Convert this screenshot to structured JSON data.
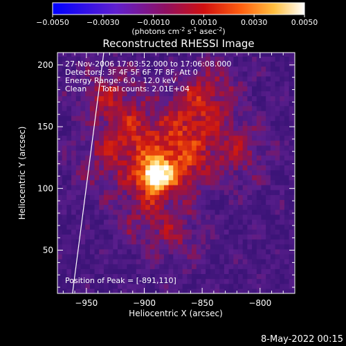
{
  "chart_data": {
    "type": "heatmap",
    "title": "Reconstructed RHESSI Image",
    "colorbar": {
      "min": -0.005,
      "max": 0.005,
      "tick_labels": [
        "-0.0050",
        "-0.0030",
        "-0.0010",
        "0.0010",
        "0.0030",
        "0.0050"
      ],
      "units_label": "(photons cm",
      "units_exp1": "-2",
      "units_mid": " s",
      "units_exp2": "-1",
      "units_mid2": " asec",
      "units_exp3": "-2",
      "units_end": ")",
      "colormap": "blue-purple-red-orange-yellow-white"
    },
    "xlabel": "Heliocentric X (arcsec)",
    "ylabel": "Heliocentric Y (arcsec)",
    "xlim": [
      -975,
      -770
    ],
    "ylim": [
      15,
      210
    ],
    "x_ticks": [
      -950,
      -900,
      -850,
      -800
    ],
    "x_tick_labels": [
      "−950",
      "−900",
      "−850",
      "−800"
    ],
    "y_ticks": [
      50,
      100,
      150,
      200
    ],
    "y_tick_labels": [
      "50",
      "100",
      "150",
      "200"
    ],
    "annotations": [
      "27-Nov-2006 17:03:52.000 to 17:06:08.000",
      "Detectors: 3F 4F 5F 6F 7F 8F, Att 0",
      "Energy Range: 6.0 - 12.0 keV",
      "Clean      Total counts: 2.01E+04"
    ],
    "peak_label": "Position of Peak = [-891,110]",
    "peak": {
      "x": -891,
      "y": 110
    },
    "sources": [
      {
        "x": -891,
        "y": 110,
        "amp": 1.0
      },
      {
        "x": -870,
        "y": 120,
        "amp": 0.6
      },
      {
        "x": -905,
        "y": 140,
        "amp": 0.45
      },
      {
        "x": -930,
        "y": 175,
        "amp": 0.4
      },
      {
        "x": -860,
        "y": 160,
        "amp": 0.4
      },
      {
        "x": -840,
        "y": 180,
        "amp": 0.3
      },
      {
        "x": -820,
        "y": 130,
        "amp": 0.35
      },
      {
        "x": -900,
        "y": 80,
        "amp": 0.3
      },
      {
        "x": -870,
        "y": 60,
        "amp": 0.25
      },
      {
        "x": -935,
        "y": 120,
        "amp": 0.3
      }
    ],
    "limb": [
      [
        -962,
        15
      ],
      [
        -935,
        210
      ]
    ]
  },
  "footer": {
    "timestamp": "8-May-2022 00:15"
  }
}
